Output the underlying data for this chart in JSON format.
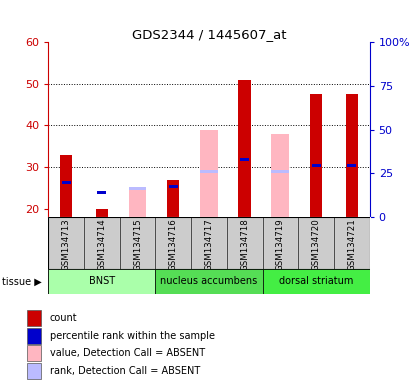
{
  "title": "GDS2344 / 1445607_at",
  "samples": [
    "GSM134713",
    "GSM134714",
    "GSM134715",
    "GSM134716",
    "GSM134717",
    "GSM134718",
    "GSM134719",
    "GSM134720",
    "GSM134721"
  ],
  "count_values": [
    33,
    20,
    null,
    27,
    null,
    51,
    null,
    47.5,
    47.5
  ],
  "percentile_rank": [
    26,
    23.5,
    null,
    25,
    null,
    31.5,
    null,
    30,
    30
  ],
  "absent_value": [
    null,
    null,
    24.5,
    null,
    39,
    null,
    38,
    null,
    null
  ],
  "absent_rank": [
    null,
    null,
    24.5,
    null,
    28.5,
    null,
    28.5,
    null,
    null
  ],
  "ylim_left": [
    18,
    60
  ],
  "ylim_right": [
    0,
    100
  ],
  "yticks_left": [
    20,
    30,
    40,
    50,
    60
  ],
  "yticks_right": [
    0,
    25,
    50,
    75,
    100
  ],
  "ytick_labels_right": [
    "0",
    "25",
    "50",
    "75",
    "100%"
  ],
  "ytick_labels_left": [
    "20",
    "30",
    "40",
    "50",
    "60"
  ],
  "tissue_groups": [
    {
      "label": "BNST",
      "start": 0,
      "end": 3,
      "color": "#AAFFAA"
    },
    {
      "label": "nucleus accumbens",
      "start": 3,
      "end": 6,
      "color": "#55DD55"
    },
    {
      "label": "dorsal striatum",
      "start": 6,
      "end": 9,
      "color": "#44EE44"
    }
  ],
  "tissue_label": "tissue",
  "legend_items": [
    {
      "color": "#CC0000",
      "label": "count"
    },
    {
      "color": "#0000CC",
      "label": "percentile rank within the sample"
    },
    {
      "color": "#FFB6C1",
      "label": "value, Detection Call = ABSENT"
    },
    {
      "color": "#BBBBFF",
      "label": "rank, Detection Call = ABSENT"
    }
  ],
  "count_color": "#CC0000",
  "rank_color": "#0000CC",
  "absent_value_color": "#FFB6C1",
  "absent_rank_color": "#BBBBFF",
  "tick_color_left": "#CC0000",
  "tick_color_right": "#0000CC",
  "sample_bg": "#CCCCCC"
}
